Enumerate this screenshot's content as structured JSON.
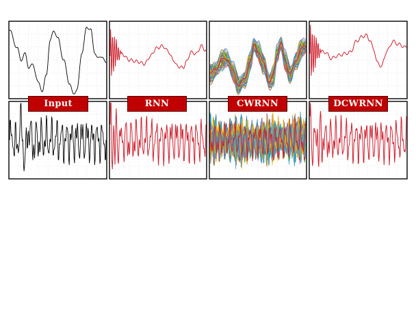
{
  "labels": [
    "Input",
    "RNN",
    "CWRNN",
    "DCWRNN"
  ],
  "colors": {
    "frame": "#000000",
    "input_line": "#000000",
    "output_line": "#d0202e",
    "grid": "#cfcfcf",
    "label_bg": "#c00000",
    "label_text": "#ffffff",
    "cwrnn_palette": [
      "#1f77b4",
      "#ff7f0e",
      "#2ca02c",
      "#d62728",
      "#9467bd",
      "#8c564b",
      "#e377c2",
      "#7f7f7f",
      "#bcbd22",
      "#17becf",
      "#f0c000",
      "#3b9dd6"
    ]
  },
  "chart_data": {
    "type": "line",
    "layout": "2 rows x 4 columns of signal panels",
    "columns": [
      "Input",
      "RNN",
      "CWRNN",
      "DCWRNN"
    ],
    "rows": [
      "low-frequency signal",
      "high-frequency signal"
    ],
    "axes": "no tick labels, no axis titles",
    "grid": true,
    "notes": "CWRNN panels overlay many multicolored traces; RNN and DCWRNN panels show a single red trace with an initial transient."
  }
}
